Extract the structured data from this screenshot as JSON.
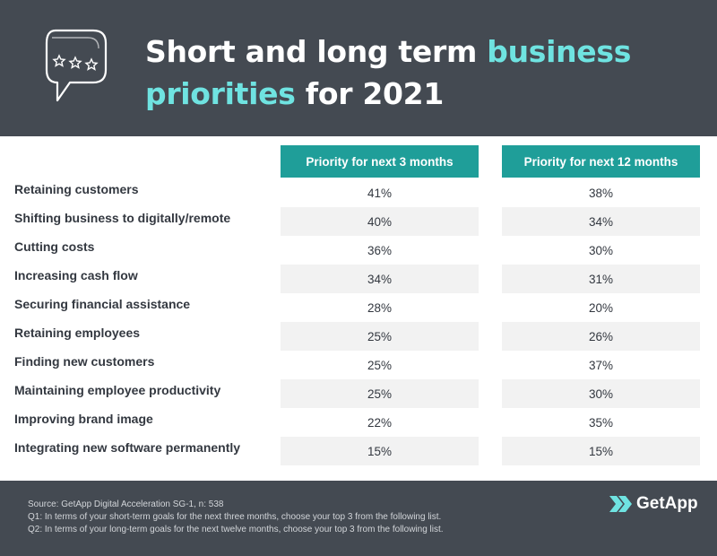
{
  "header": {
    "title_part1": "Short and long term ",
    "title_highlight1": "business",
    "title_highlight2": "priorities",
    "title_part2": " for 2021"
  },
  "chart_data": {
    "type": "table",
    "title": "Short and long term business priorities for 2021",
    "columns": [
      "Priority for next 3 months",
      "Priority for next 12 months"
    ],
    "rows": [
      {
        "label": "Retaining customers",
        "values": [
          "41%",
          "38%"
        ]
      },
      {
        "label": "Shifting business to digitally/remote",
        "values": [
          "40%",
          "34%"
        ]
      },
      {
        "label": "Cutting costs",
        "values": [
          "36%",
          "30%"
        ]
      },
      {
        "label": "Increasing cash flow",
        "values": [
          "34%",
          "31%"
        ]
      },
      {
        "label": "Securing financial assistance",
        "values": [
          "28%",
          "20%"
        ]
      },
      {
        "label": "Retaining employees",
        "values": [
          "25%",
          "26%"
        ]
      },
      {
        "label": "Finding new customers",
        "values": [
          "25%",
          "37%"
        ]
      },
      {
        "label": "Maintaining employee productivity",
        "values": [
          "25%",
          "30%"
        ]
      },
      {
        "label": "Improving brand image",
        "values": [
          "22%",
          "35%"
        ]
      },
      {
        "label": "Integrating new software permanently",
        "values": [
          "15%",
          "15%"
        ]
      }
    ]
  },
  "footer": {
    "source": "Source: GetApp Digital Acceleration SG-1, n: 538",
    "q1": "Q1: In terms of your short-term goals for the next three months, choose your top 3 from the following list.",
    "q2": "Q2: In terms of your long-term goals for the next twelve months, choose your top 3 from the following list.",
    "brand": "GetApp"
  },
  "colors": {
    "header_bg": "#444a52",
    "accent": "#6fe3e1",
    "column_header": "#1f9e99",
    "shaded_row": "#f2f2f2"
  }
}
